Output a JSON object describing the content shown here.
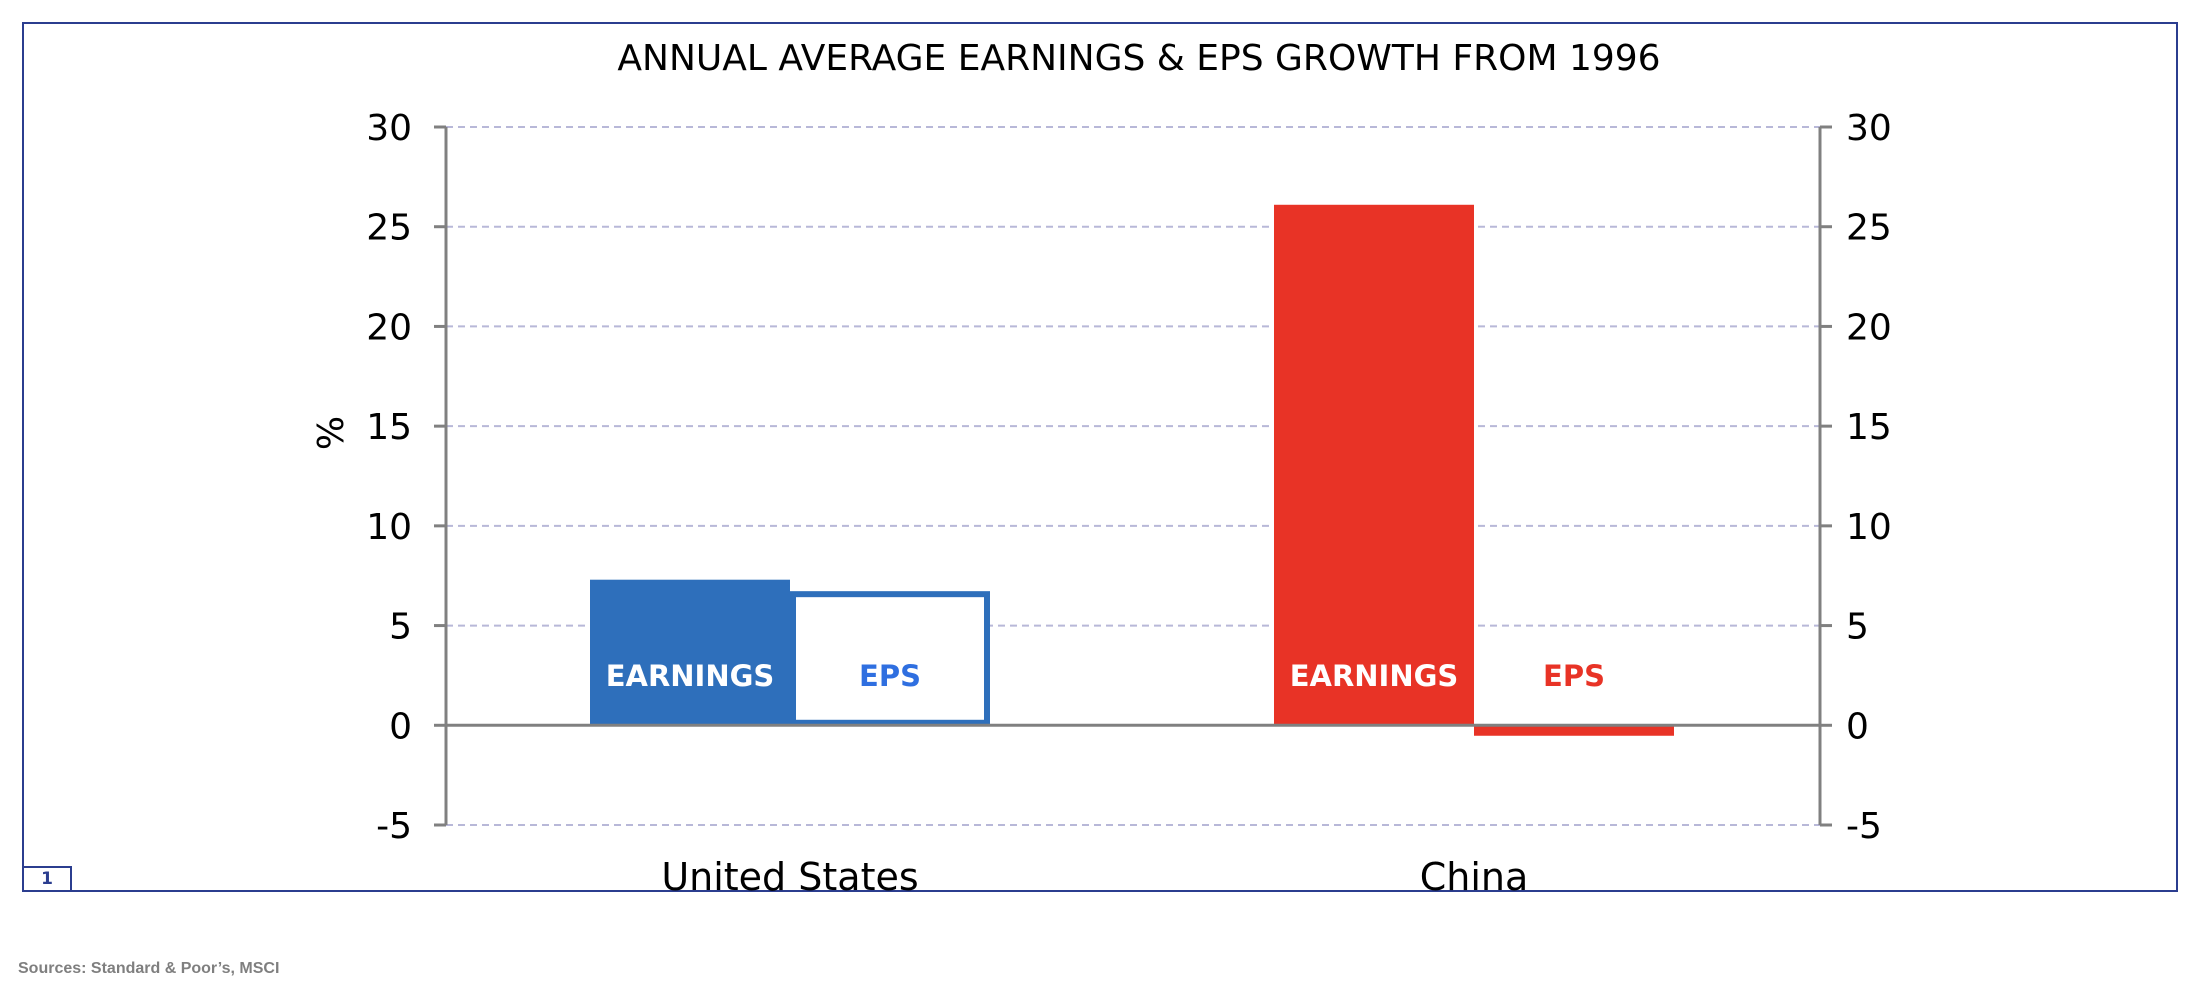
{
  "chart_data": {
    "type": "bar",
    "title": "ANNUAL AVERAGE EARNINGS & EPS GROWTH FROM 1996",
    "ylabel": "%",
    "ylim": [
      -5,
      30
    ],
    "yticks": [
      -5,
      0,
      5,
      10,
      15,
      20,
      25,
      30
    ],
    "grid": true,
    "secondary_y_axis": true,
    "categories": [
      "United States",
      "China"
    ],
    "bars": [
      {
        "category": "United States",
        "label": "EARNINGS",
        "value": 7.3,
        "fill": "#2e6fbb",
        "stroke": "#2e6fbb",
        "label_color": "#ffffff",
        "filled": true
      },
      {
        "category": "United States",
        "label": "EPS",
        "value": 6.7,
        "fill": "#ffffff",
        "stroke": "#2e6fbb",
        "label_color": "#2f6fe0",
        "filled": false
      },
      {
        "category": "China",
        "label": "EARNINGS",
        "value": 26.1,
        "fill": "#e83326",
        "stroke": "#e83326",
        "label_color": "#ffffff",
        "filled": true
      },
      {
        "category": "China",
        "label": "EPS",
        "value": -0.5,
        "fill": "#ffffff",
        "stroke": "#e83326",
        "label_color": "#e83326",
        "filled": false
      }
    ]
  },
  "page_number": "1",
  "source": "Sources: Standard & Poor’s, MSCI",
  "colors": {
    "frame": "#2b3d8f",
    "axis": "#808080",
    "grid": "#b8b8d8",
    "us": "#2e6fbb",
    "china": "#e83326",
    "source_text": "#7f7f7f"
  }
}
